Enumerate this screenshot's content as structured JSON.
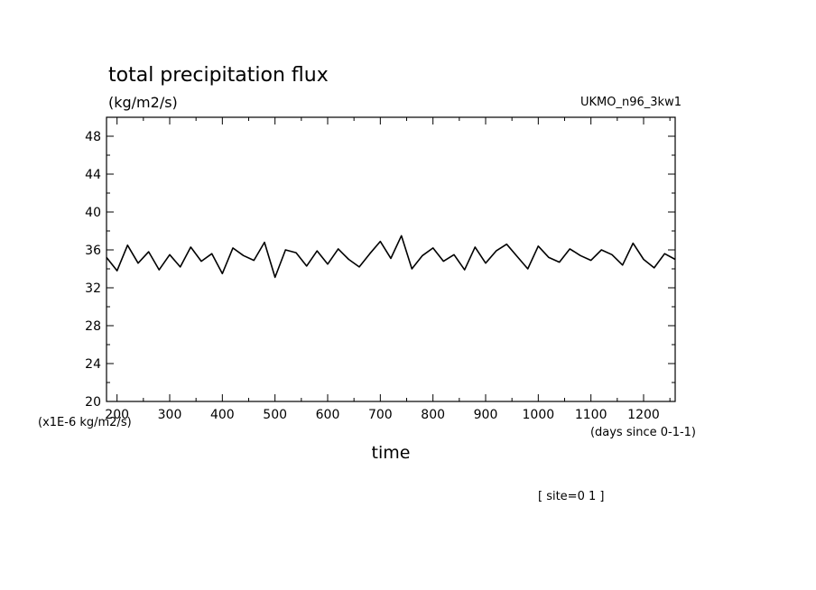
{
  "chart_data": {
    "type": "line",
    "title": "total precipitation flux",
    "units_label": "(kg/m2/s)",
    "model_label": "UKMO_n96_3kw1",
    "xlabel": "time",
    "x_units": "(days since 0-1-1)",
    "y_scale_note": "(x1E-6 kg/m2/s)",
    "site_label": "[ site=0 1 ]",
    "xlim": [
      180,
      1260
    ],
    "ylim": [
      20,
      50
    ],
    "x_ticks": [
      "200",
      "300",
      "400",
      "500",
      "600",
      "700",
      "800",
      "900",
      "1000",
      "1100",
      "1200"
    ],
    "y_ticks": [
      "20",
      "24",
      "28",
      "32",
      "36",
      "40",
      "44",
      "48"
    ],
    "grid": false,
    "series_color": "#000000",
    "series": [
      {
        "x": [
          180,
          200,
          220,
          240,
          260,
          280,
          300,
          320,
          340,
          360,
          380,
          400,
          420,
          440,
          460,
          480,
          500,
          520,
          540,
          560,
          580,
          600,
          620,
          640,
          660,
          680,
          700,
          720,
          740,
          760,
          780,
          800,
          820,
          840,
          860,
          880,
          900,
          920,
          940,
          960,
          980,
          1000,
          1020,
          1040,
          1060,
          1080,
          1100,
          1120,
          1140,
          1160,
          1180,
          1200,
          1220,
          1240,
          1260
        ],
        "values": [
          35.2,
          33.8,
          36.5,
          34.6,
          35.8,
          33.9,
          35.5,
          34.2,
          36.3,
          34.8,
          35.6,
          33.5,
          36.2,
          35.4,
          34.9,
          36.8,
          33.1,
          36.0,
          35.7,
          34.3,
          35.9,
          34.5,
          36.1,
          35.0,
          34.2,
          35.6,
          36.9,
          35.1,
          37.5,
          34.0,
          35.4,
          36.2,
          34.8,
          35.5,
          33.9,
          36.3,
          34.6,
          35.9,
          36.6,
          35.3,
          34.0,
          36.4,
          35.2,
          34.7,
          36.1,
          35.4,
          34.9,
          36.0,
          35.5,
          34.4,
          36.7,
          35.0,
          34.1,
          35.6,
          35.0
        ]
      }
    ]
  }
}
